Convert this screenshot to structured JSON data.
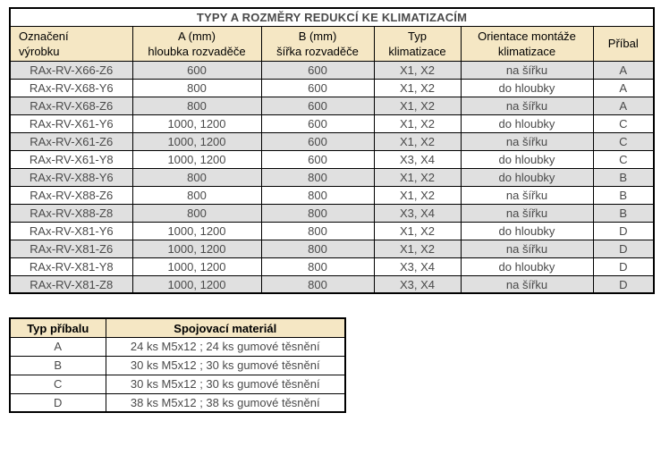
{
  "page_title": "TYPY A ROZMĚRY REDUKCÍ KE KLIMATIZACÍM",
  "main_table": {
    "columns": [
      "Označení\nvýrobku",
      "A (mm)\nhloubka rozvaděče",
      "B (mm)\nšířka rozvaděče",
      "Typ\nklimatizace",
      "Orientace montáže\nklimatizace",
      "Příbal"
    ],
    "rows": [
      [
        "RAx-RV-X66-Z6",
        "600",
        "600",
        "X1, X2",
        "na šířku",
        "A"
      ],
      [
        "RAx-RV-X68-Y6",
        "800",
        "600",
        "X1, X2",
        "do hloubky",
        "A"
      ],
      [
        "RAx-RV-X68-Z6",
        "800",
        "600",
        "X1, X2",
        "na šířku",
        "A"
      ],
      [
        "RAx-RV-X61-Y6",
        "1000, 1200",
        "600",
        "X1, X2",
        "do hloubky",
        "C"
      ],
      [
        "RAx-RV-X61-Z6",
        "1000, 1200",
        "600",
        "X1, X2",
        "na šířku",
        "C"
      ],
      [
        "RAx-RV-X61-Y8",
        "1000, 1200",
        "600",
        "X3, X4",
        "do hloubky",
        "C"
      ],
      [
        "RAx-RV-X88-Y6",
        "800",
        "800",
        "X1, X2",
        "do hloubky",
        "B"
      ],
      [
        "RAx-RV-X88-Z6",
        "800",
        "800",
        "X1, X2",
        "na šířku",
        "B"
      ],
      [
        "RAx-RV-X88-Z8",
        "800",
        "800",
        "X3, X4",
        "na šířku",
        "B"
      ],
      [
        "RAx-RV-X81-Y6",
        "1000, 1200",
        "800",
        "X1, X2",
        "do hloubky",
        "D"
      ],
      [
        "RAx-RV-X81-Z6",
        "1000, 1200",
        "800",
        "X1, X2",
        "na šířku",
        "D"
      ],
      [
        "RAx-RV-X81-Y8",
        "1000, 1200",
        "800",
        "X3, X4",
        "do hloubky",
        "D"
      ],
      [
        "RAx-RV-X81-Z8",
        "1000, 1200",
        "800",
        "X3, X4",
        "na šířku",
        "D"
      ]
    ]
  },
  "accessory_table": {
    "columns": [
      "Typ příbalu",
      "Spojovací materiál"
    ],
    "rows": [
      [
        "A",
        "24 ks M5x12 ; 24 ks gumové těsnění"
      ],
      [
        "B",
        "30 ks M5x12 ; 30 ks gumové těsnění"
      ],
      [
        "C",
        "30 ks M5x12 ; 30 ks gumové těsnění"
      ],
      [
        "D",
        "38 ks M5x12 ; 38 ks gumové těsnění"
      ]
    ]
  },
  "colors": {
    "title_bar": "#F0880A",
    "header_bg": "#F5E7C4",
    "row_stripe": "#E0E0E0",
    "row_plain": "#FFFFFF",
    "border": "#000000",
    "data_text": "#4A4A4A",
    "heading_text": "#000000"
  }
}
